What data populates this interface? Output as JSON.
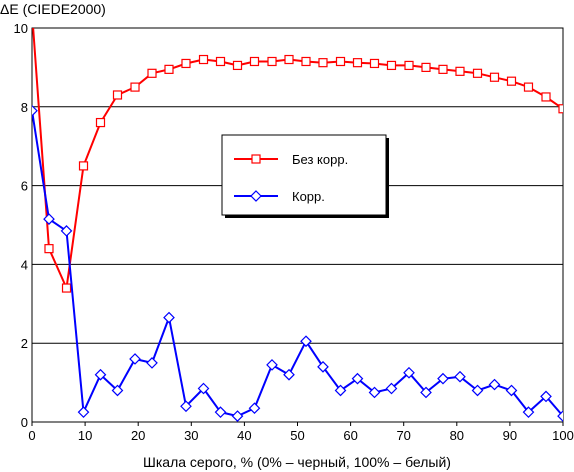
{
  "chart_data": {
    "type": "line",
    "title": "",
    "xlabel": "Шкала серого, % (0% – черный, 100% – белый)",
    "ylabel": "ΔE (CIEDE2000)",
    "xlim": [
      0,
      100
    ],
    "ylim": [
      0,
      10
    ],
    "xticks": [
      0,
      10,
      20,
      30,
      40,
      50,
      60,
      70,
      80,
      90,
      100
    ],
    "yticks": [
      0,
      2,
      4,
      6,
      8,
      10
    ],
    "grid": "horizontal",
    "legend_placement": "center",
    "series": [
      {
        "name": "Без корр.",
        "color": "#ff0000",
        "marker": "square",
        "x": [
          0,
          3.2,
          6.5,
          9.7,
          12.9,
          16.1,
          19.4,
          22.6,
          25.8,
          29.0,
          32.3,
          35.5,
          38.7,
          41.9,
          45.2,
          48.4,
          51.6,
          54.8,
          58.1,
          61.3,
          64.5,
          67.7,
          71.0,
          74.2,
          77.4,
          80.6,
          83.9,
          87.1,
          90.3,
          93.5,
          96.8,
          100
        ],
        "values": [
          10.4,
          4.4,
          3.4,
          6.5,
          7.6,
          8.3,
          8.5,
          8.85,
          8.95,
          9.1,
          9.2,
          9.15,
          9.05,
          9.15,
          9.15,
          9.2,
          9.15,
          9.12,
          9.15,
          9.12,
          9.1,
          9.05,
          9.05,
          9.0,
          8.95,
          8.9,
          8.85,
          8.75,
          8.65,
          8.5,
          8.25,
          7.95
        ]
      },
      {
        "name": "Корр.",
        "color": "#0000ff",
        "marker": "diamond",
        "x": [
          0,
          3.2,
          6.5,
          9.7,
          12.9,
          16.1,
          19.4,
          22.6,
          25.8,
          29.0,
          32.3,
          35.5,
          38.7,
          41.9,
          45.2,
          48.4,
          51.6,
          54.8,
          58.1,
          61.3,
          64.5,
          67.7,
          71.0,
          74.2,
          77.4,
          80.6,
          83.9,
          87.1,
          90.3,
          93.5,
          96.8,
          100
        ],
        "values": [
          7.9,
          5.15,
          4.85,
          0.25,
          1.2,
          0.8,
          1.6,
          1.5,
          2.65,
          0.4,
          0.85,
          0.25,
          0.15,
          0.35,
          1.45,
          1.2,
          2.05,
          1.4,
          0.8,
          1.1,
          0.75,
          0.85,
          1.25,
          0.75,
          1.1,
          1.15,
          0.8,
          0.95,
          0.8,
          0.25,
          0.65,
          0.15
        ]
      }
    ]
  }
}
